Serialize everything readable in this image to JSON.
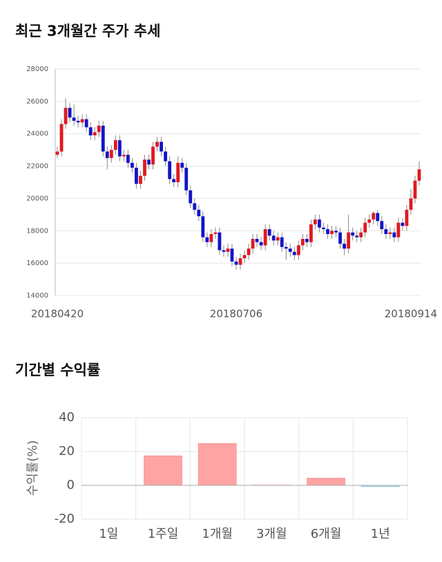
{
  "chart_data": [
    {
      "type": "candlestick",
      "title": "최근 3개월간 주가 추세",
      "categories": [
        "20180420",
        null,
        null,
        null,
        null,
        null,
        null,
        null,
        null,
        null,
        null,
        null,
        null,
        null,
        null,
        null,
        null,
        null,
        null,
        null,
        null,
        null,
        null,
        null,
        null,
        null,
        null,
        null,
        null,
        null,
        null,
        null,
        null,
        null,
        null,
        null,
        null,
        null,
        null,
        null,
        null,
        null,
        null,
        "20180706",
        null,
        null,
        null,
        null,
        null,
        null,
        null,
        null,
        null,
        null,
        null,
        null,
        null,
        null,
        null,
        null,
        null,
        null,
        null,
        null,
        null,
        null,
        null,
        null,
        null,
        null,
        null,
        null,
        null,
        null,
        null,
        null,
        null,
        null,
        null,
        null,
        null,
        null,
        null,
        null,
        null,
        "20180914",
        null,
        null
      ],
      "open": [
        22700,
        22900,
        24600,
        25600,
        25000,
        24800,
        24700,
        24900,
        24400,
        23900,
        24100,
        24500,
        22900,
        22500,
        23000,
        23600,
        22600,
        22700,
        22200,
        21900,
        20900,
        21400,
        22400,
        22100,
        23200,
        23500,
        22900,
        22300,
        21200,
        21000,
        22200,
        21900,
        20500,
        19700,
        19300,
        18900,
        17600,
        17300,
        17800,
        17900,
        16800,
        16700,
        16900,
        16100,
        15900,
        16300,
        16500,
        16900,
        17500,
        17300,
        17100,
        18100,
        17700,
        17400,
        17600,
        17000,
        16900,
        16700,
        16500,
        17100,
        17500,
        17300,
        18400,
        18700,
        18200,
        18100,
        17800,
        18000,
        17900,
        17200,
        16900,
        17900,
        17700,
        17600,
        17900,
        18500,
        18700,
        19100,
        18600,
        18100,
        17800,
        17900,
        17600,
        18500,
        18300,
        19300,
        20000,
        21100
      ],
      "high": [
        23200,
        24900,
        26200,
        25900,
        25800,
        25100,
        25200,
        25200,
        24700,
        24400,
        24800,
        24800,
        23200,
        23300,
        23900,
        23900,
        23000,
        23000,
        22500,
        22200,
        21700,
        22700,
        22700,
        23500,
        23800,
        23800,
        23200,
        22600,
        21500,
        22600,
        22500,
        22200,
        20800,
        20000,
        19600,
        19200,
        17900,
        18100,
        18200,
        18200,
        17100,
        17200,
        17200,
        16400,
        16600,
        16800,
        17200,
        17800,
        17800,
        17600,
        18400,
        18400,
        18000,
        17900,
        17900,
        17300,
        17200,
        17000,
        17400,
        17800,
        17800,
        18700,
        19000,
        19000,
        18500,
        18400,
        18300,
        18300,
        18200,
        17500,
        19000,
        18200,
        18000,
        18200,
        18800,
        19000,
        19200,
        19300,
        18900,
        18400,
        18200,
        18200,
        18800,
        18800,
        19600,
        20600,
        21400,
        22300
      ],
      "low": [
        22500,
        22600,
        24300,
        24700,
        24500,
        24400,
        24400,
        24100,
        23600,
        23600,
        23800,
        22600,
        21800,
        22200,
        22700,
        22300,
        22300,
        21900,
        21600,
        20600,
        20600,
        21100,
        21800,
        21800,
        22900,
        22600,
        22000,
        20900,
        20700,
        20700,
        21600,
        20200,
        19400,
        19000,
        18600,
        17300,
        17000,
        17000,
        17500,
        16500,
        16400,
        16400,
        15800,
        15600,
        15600,
        16000,
        16200,
        16600,
        17000,
        16800,
        16800,
        17400,
        17100,
        17100,
        16700,
        16200,
        16400,
        16200,
        16200,
        16800,
        17000,
        17000,
        18100,
        17900,
        17800,
        17500,
        17500,
        17600,
        16900,
        16500,
        16600,
        17400,
        17300,
        17300,
        17600,
        18200,
        18400,
        18300,
        17800,
        17500,
        17500,
        17300,
        17300,
        18000,
        18000,
        19000,
        19700,
        20800
      ],
      "close": [
        22900,
        24600,
        25600,
        25000,
        24800,
        24700,
        24900,
        24400,
        23900,
        24100,
        24500,
        22900,
        22500,
        23000,
        23600,
        22600,
        22700,
        22200,
        21900,
        20900,
        21400,
        22400,
        22100,
        23200,
        23500,
        22900,
        22300,
        21200,
        21000,
        22200,
        21900,
        20500,
        19700,
        19300,
        18900,
        17600,
        17300,
        17800,
        17900,
        16800,
        16700,
        16900,
        16100,
        15900,
        16300,
        16500,
        16900,
        17500,
        17300,
        17100,
        18100,
        17700,
        17400,
        17600,
        17000,
        16900,
        16700,
        16500,
        17100,
        17500,
        17300,
        18400,
        18700,
        18200,
        18100,
        17800,
        18000,
        17900,
        17200,
        16900,
        17900,
        17700,
        17600,
        17900,
        18500,
        18700,
        19100,
        18600,
        18100,
        17800,
        17900,
        17600,
        18500,
        18300,
        19300,
        20000,
        21100,
        21800
      ],
      "up_color": "#e0191e",
      "down_color": "#1414c8",
      "ylim": [
        14000,
        28000
      ],
      "yticks": [
        14000,
        16000,
        18000,
        20000,
        22000,
        24000,
        26000,
        28000
      ],
      "grid": true
    },
    {
      "type": "bar",
      "title": "기간별 수익률",
      "ylabel": "수익률(%)",
      "categories": [
        "1일",
        "1주일",
        "1개월",
        "3개월",
        "6개월",
        "1년"
      ],
      "values": [
        0,
        17.5,
        24.8,
        0.2,
        4.3,
        -0.8
      ],
      "positive_color": "#ffa3a3",
      "negative_color": "#a9d3e6",
      "ylim": [
        -20,
        40
      ],
      "yticks": [
        -20,
        0,
        20,
        40
      ],
      "grid": true
    }
  ]
}
